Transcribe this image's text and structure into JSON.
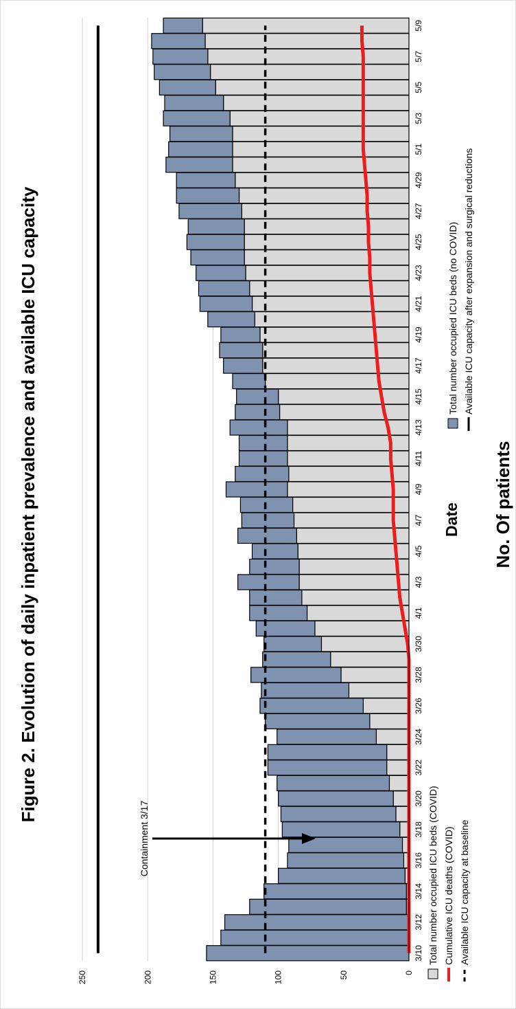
{
  "chart_data": {
    "type": "bar",
    "title": "Figure 2. Evolution of daily inpatient prevalence and available ICU capacity",
    "xlabel": "Date",
    "ylabel": "No. Of patients",
    "ylim": [
      0,
      270
    ],
    "yticks": [
      0,
      50,
      100,
      150,
      200,
      250
    ],
    "grid": true,
    "categories": [
      "3/10",
      "3/11",
      "3/12",
      "3/13",
      "3/14",
      "3/15",
      "3/16",
      "3/17",
      "3/18",
      "3/19",
      "3/20",
      "3/21",
      "3/22",
      "3/23",
      "3/24",
      "3/25",
      "3/26",
      "3/27",
      "3/28",
      "3/29",
      "3/30",
      "3/31",
      "4/1",
      "4/2",
      "4/3",
      "4/4",
      "4/5",
      "4/6",
      "4/7",
      "4/8",
      "4/9",
      "4/10",
      "4/11",
      "4/12",
      "4/13",
      "4/14",
      "4/15",
      "4/16",
      "4/17",
      "4/18",
      "4/19",
      "4/20",
      "4/21",
      "4/22",
      "4/23",
      "4/24",
      "4/25",
      "4/26",
      "4/27",
      "4/28",
      "4/29",
      "4/30",
      "5/1",
      "5/2",
      "5/3",
      "5/4",
      "5/5",
      "5/6",
      "5/7",
      "5/8",
      "5/9"
    ],
    "tick_labels": [
      "3/10",
      "3/12",
      "3/14",
      "3/16",
      "3/18",
      "3/20",
      "3/22",
      "3/24",
      "3/26",
      "3/28",
      "3/30",
      "4/1",
      "4/3",
      "4/5",
      "4/7",
      "4/9",
      "4/11",
      "4/13",
      "4/15",
      "4/17",
      "4/19",
      "4/21",
      "4/23",
      "4/25",
      "4/27",
      "4/29",
      "5/1",
      "5/3",
      "5/5",
      "5/7",
      "5/9"
    ],
    "series": [
      {
        "name": "Total number occupied ICU beds (COVID)",
        "type": "stacked-bar",
        "color": "#d9d9d9",
        "values": [
          0,
          1,
          1,
          2,
          2,
          3,
          4,
          5,
          7,
          10,
          12,
          15,
          17,
          17,
          25,
          30,
          35,
          46,
          52,
          60,
          67,
          72,
          78,
          82,
          84,
          84,
          85,
          86,
          88,
          89,
          93,
          92,
          93,
          93,
          93,
          99,
          100,
          110,
          112,
          112,
          114,
          118,
          120,
          122,
          125,
          126,
          126,
          126,
          128,
          130,
          133,
          135,
          135,
          135,
          137,
          142,
          148,
          152,
          154,
          156,
          158
        ]
      },
      {
        "name": "Total number occupied ICU beds (no COVID)",
        "type": "stacked-bar",
        "color": "#7f93b1",
        "values": [
          155,
          143,
          140,
          120,
          109,
          97,
          89,
          87,
          90,
          88,
          88,
          86,
          91,
          91,
          76,
          80,
          79,
          67,
          69,
          52,
          44,
          45,
          44,
          40,
          47,
          38,
          35,
          45,
          40,
          40,
          47,
          41,
          37,
          37,
          44,
          34,
          32,
          25,
          30,
          33,
          30,
          36,
          40,
          39,
          38,
          41,
          44,
          43,
          48,
          48,
          45,
          51,
          49,
          48,
          51,
          45,
          43,
          43,
          42,
          41,
          30
        ]
      },
      {
        "name": "Cumulative ICU deaths (COVID)",
        "type": "line",
        "color": "#ee1c1c",
        "values": [
          0,
          0,
          0,
          0,
          0,
          0,
          0,
          0,
          0,
          0,
          0,
          0,
          0,
          0,
          0,
          0,
          0,
          0,
          0,
          0,
          1,
          3,
          5,
          7,
          8,
          9,
          10,
          11,
          12,
          12,
          12,
          13,
          14,
          14,
          16,
          19,
          21,
          23,
          24,
          25,
          26,
          27,
          28,
          29,
          30,
          30,
          31,
          31,
          32,
          32,
          33,
          34,
          35,
          35,
          35,
          35,
          35,
          35,
          35,
          36,
          36
        ]
      },
      {
        "name": "Available ICU capacity at baseline",
        "type": "dashed-line",
        "color": "#000000",
        "value": 110
      },
      {
        "name": "Available ICU capacity after expansion and surgical reductions",
        "type": "line",
        "color": "#000000",
        "value": 238
      }
    ],
    "annotations": [
      {
        "text": "Containment 3/17"
      }
    ]
  },
  "legend": {
    "covid_beds": "Total number occupied ICU beds (COVID)",
    "deaths": "Cumulative ICU deaths (COVID)",
    "baseline": "Available ICU capacity at baseline",
    "no_covid_beds": "Total number occupied ICU beds (no COVID)",
    "expanded": "Available ICU capacity after expansion and surgical reductions"
  },
  "colors": {
    "covid_beds": "#d9d9d9",
    "no_covid_beds": "#7f93b1",
    "deaths": "#ee1c1c",
    "capacity": "#000000",
    "grid": "#d0d0d0"
  }
}
